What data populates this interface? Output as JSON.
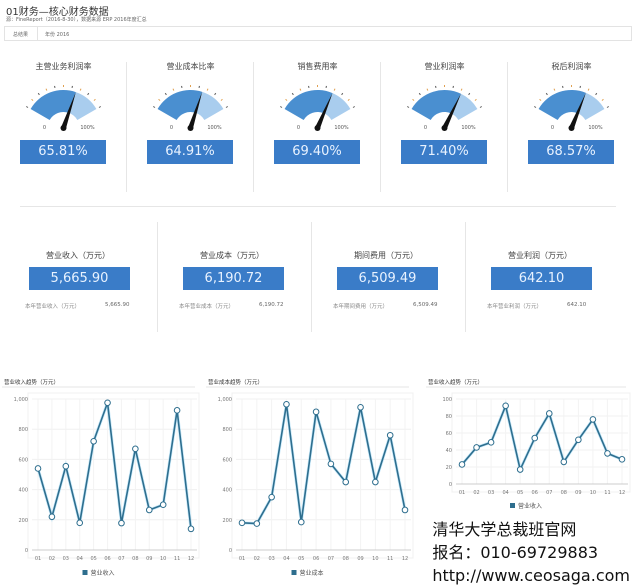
{
  "header": {
    "title": "01财务—核心财务数据",
    "subtitle": "源：FineReport（2016-8-30），数据来源 ERP 2016年度汇总"
  },
  "filter": {
    "label": "总结果",
    "value": "年份 2016"
  },
  "gauges": [
    {
      "title": "主营业务利润率",
      "value": "65.81%",
      "pct": 65.81,
      "min": "0",
      "max": "100%"
    },
    {
      "title": "营业成本比率",
      "value": "64.91%",
      "pct": 64.91,
      "min": "0",
      "max": "100%"
    },
    {
      "title": "销售费用率",
      "value": "69.40%",
      "pct": 69.4,
      "min": "0",
      "max": "100%"
    },
    {
      "title": "营业利润率",
      "value": "71.40%",
      "pct": 71.4,
      "min": "0",
      "max": "100%"
    },
    {
      "title": "税后利润率",
      "value": "68.57%",
      "pct": 68.57,
      "min": "0",
      "max": "100%"
    }
  ],
  "kpis": [
    {
      "title": "营业收入（万元）",
      "value": "5,665.90",
      "sub_label": "本年营业收入（万元）",
      "sub_value": "5,665.90"
    },
    {
      "title": "营业成本（万元）",
      "value": "6,190.72",
      "sub_label": "本年营业成本（万元）",
      "sub_value": "6,190.72"
    },
    {
      "title": "期间费用（万元）",
      "value": "6,509.49",
      "sub_label": "本年期间费用（万元）",
      "sub_value": "6,509.49"
    },
    {
      "title": "营业利润（万元）",
      "value": "642.10",
      "sub_label": "本年营业利润（万元）",
      "sub_value": "642.10"
    }
  ],
  "colors": {
    "accent": "#3a7cc8",
    "gauge_fill": "#4a8fd0",
    "gauge_rest": "#a9cdee",
    "line": "#2e6e8e",
    "glow": "#8fd3f5"
  },
  "chart_data": [
    {
      "type": "line",
      "title": "营业收入趋势（万元）",
      "categories": [
        "01",
        "02",
        "03",
        "04",
        "05",
        "06",
        "07",
        "08",
        "09",
        "10",
        "11",
        "12"
      ],
      "series": [
        {
          "name": "营业收入",
          "values": [
            540,
            220,
            555,
            180,
            720,
            975,
            178,
            670,
            265,
            300,
            925,
            140
          ]
        }
      ],
      "ylim": [
        0,
        1000
      ],
      "yticks": [
        "0",
        "200",
        "400",
        "600",
        "800",
        "1,000"
      ],
      "grid": true,
      "legend": "bottom"
    },
    {
      "type": "line",
      "title": "营业成本趋势（万元）",
      "categories": [
        "01",
        "02",
        "03",
        "04",
        "05",
        "06",
        "07",
        "08",
        "09",
        "10",
        "11",
        "12"
      ],
      "series": [
        {
          "name": "营业成本",
          "values": [
            180,
            175,
            350,
            965,
            185,
            915,
            570,
            450,
            945,
            450,
            760,
            265
          ]
        }
      ],
      "ylim": [
        0,
        1000
      ],
      "yticks": [
        "0",
        "200",
        "400",
        "600",
        "800",
        "1,000"
      ],
      "grid": true,
      "legend": "bottom"
    },
    {
      "type": "line",
      "title": "营业收入趋势（万元）",
      "categories": [
        "01",
        "02",
        "03",
        "04",
        "05",
        "06",
        "07",
        "08",
        "09",
        "10",
        "11",
        "12"
      ],
      "series": [
        {
          "name": "营业收入",
          "values": [
            23,
            43,
            49,
            92,
            17,
            54,
            83,
            26,
            52,
            76,
            36,
            29
          ]
        }
      ],
      "ylim": [
        0,
        100
      ],
      "yticks": [
        "0",
        "20",
        "40",
        "60",
        "80",
        "100"
      ],
      "grid": true,
      "legend": "bottom"
    }
  ],
  "watermark": {
    "line1": "清华大学总裁班官网",
    "line2": "报名：010-69729883",
    "line3": "http://www.ceosaga.com"
  }
}
